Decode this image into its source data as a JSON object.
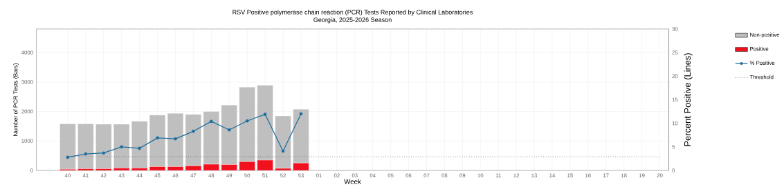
{
  "chart_data": {
    "type": "bar",
    "title": "RSV Positive polymerase chain reaction (PCR) Tests Reported by Clinical Laboratories",
    "subtitle": "Georgia, 2025-2026 Season",
    "xlabel": "Week",
    "ylabel": "Number of PCR Tests (Bars)",
    "y2label": "Percent Positive (Lines)",
    "categories": [
      "40",
      "41",
      "42",
      "43",
      "44",
      "45",
      "46",
      "47",
      "48",
      "49",
      "50",
      "51",
      "52",
      "53",
      "01",
      "02",
      "03",
      "04",
      "05",
      "06",
      "07",
      "08",
      "09",
      "10",
      "11",
      "12",
      "13",
      "14",
      "15",
      "16",
      "17",
      "18",
      "19",
      "20"
    ],
    "stacked": true,
    "series": [
      {
        "name": "Positive",
        "color": "#f0101e",
        "values": [
          40,
          60,
          60,
          80,
          80,
          130,
          130,
          160,
          210,
          200,
          300,
          350,
          70,
          250,
          null,
          null,
          null,
          null,
          null,
          null,
          null,
          null,
          null,
          null,
          null,
          null,
          null,
          null,
          null,
          null,
          null,
          null,
          null,
          null
        ]
      },
      {
        "name": "Non-positive",
        "color": "#bfbfbf",
        "values": [
          1540,
          1520,
          1510,
          1490,
          1590,
          1750,
          1810,
          1740,
          1790,
          2020,
          2530,
          2540,
          1780,
          1830,
          null,
          null,
          null,
          null,
          null,
          null,
          null,
          null,
          null,
          null,
          null,
          null,
          null,
          null,
          null,
          null,
          null,
          null,
          null,
          null
        ]
      },
      {
        "name": "% Positive",
        "type": "line",
        "axis": "y2",
        "color": "#1f6f9f",
        "marker": "circle",
        "line_style": "solid",
        "values": [
          2.8,
          3.5,
          3.7,
          5.0,
          4.7,
          6.9,
          6.7,
          8.3,
          10.4,
          8.6,
          10.5,
          11.9,
          4.1,
          12.0,
          null,
          null,
          null,
          null,
          null,
          null,
          null,
          null,
          null,
          null,
          null,
          null,
          null,
          null,
          null,
          null,
          null,
          null,
          null,
          null
        ]
      }
    ],
    "ref_lines": [
      {
        "axis": "y2",
        "value": 2.9,
        "label": "Threshold",
        "color": "#404040",
        "line_style": "dotted"
      }
    ],
    "ylim": [
      0,
      4800
    ],
    "yticks": [
      0,
      1000,
      2000,
      3000,
      4000
    ],
    "y2lim": [
      0,
      30
    ],
    "y2ticks": [
      0,
      5,
      10,
      15,
      20,
      25,
      30
    ],
    "grid": true,
    "legend": "right"
  }
}
